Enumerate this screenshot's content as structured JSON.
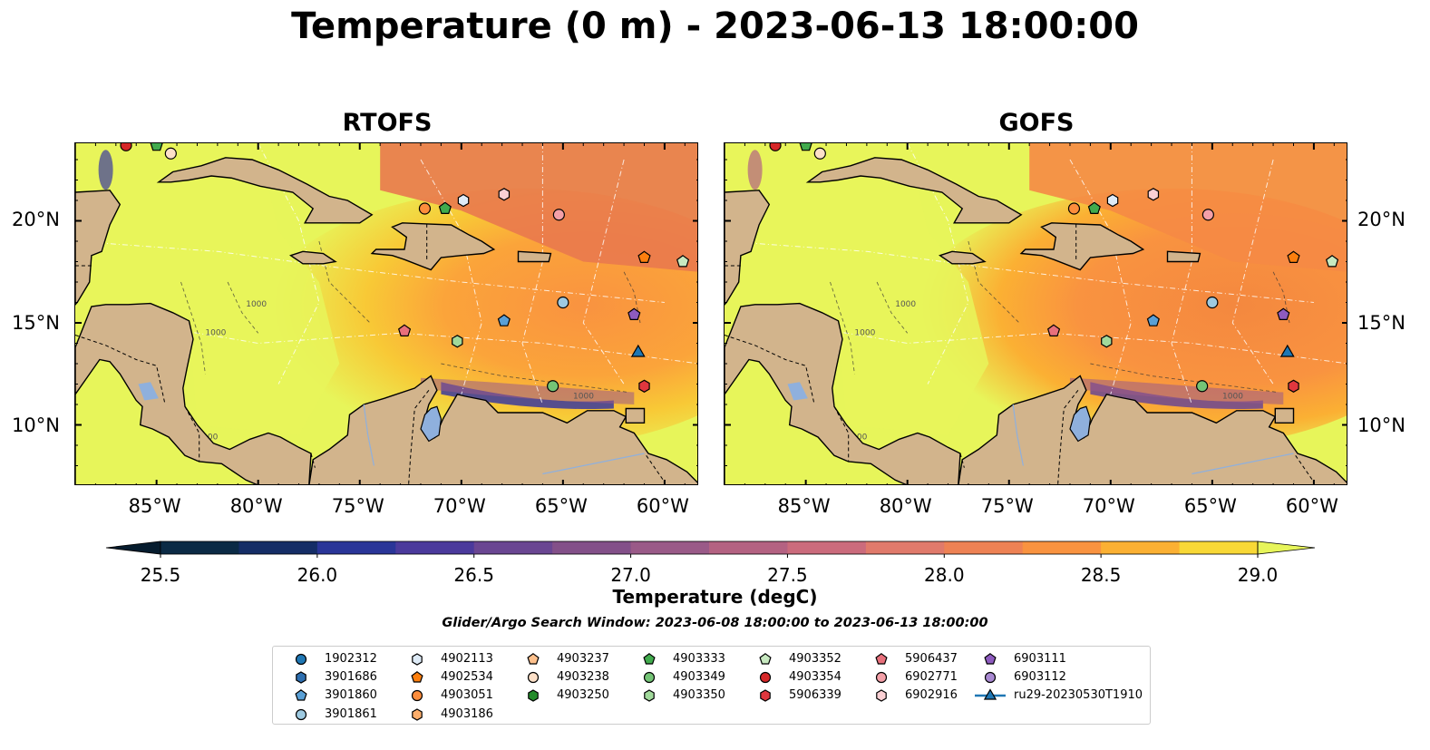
{
  "title": "Temperature (0 m) - 2023-06-13 18:00:00",
  "panels": [
    {
      "title": "RTOFS"
    },
    {
      "title": "GOFS"
    }
  ],
  "lon_ticks": [
    "85°W",
    "80°W",
    "75°W",
    "70°W",
    "65°W",
    "60°W"
  ],
  "lat_ticks": [
    "20°N",
    "15°N",
    "10°N"
  ],
  "contour_label": "1000",
  "colorbar": {
    "label": "Temperature (degC)",
    "ticks": [
      "25.5",
      "26.0",
      "26.5",
      "27.0",
      "27.5",
      "28.0",
      "28.5",
      "29.0"
    ],
    "colors": [
      "#0b2a45",
      "#152d66",
      "#2a3598",
      "#4b3a9c",
      "#6a4692",
      "#835089",
      "#9a5a88",
      "#b46282",
      "#cb6b7c",
      "#e07a6b",
      "#ee8254",
      "#f99340",
      "#fbb033",
      "#f8d836"
    ],
    "extend_min_color": "#061c2e",
    "extend_max_color": "#e7f55a"
  },
  "search_window": "Glider/Argo Search Window: 2023-06-08 18:00:00 to 2023-06-13 18:00:00",
  "legend": [
    {
      "label": "1902312",
      "marker": "circle",
      "color": "#1f77b4"
    },
    {
      "label": "3901686",
      "marker": "hexagon",
      "color": "#2e6fb0"
    },
    {
      "label": "3901860",
      "marker": "pentagon",
      "color": "#5aa0d6"
    },
    {
      "label": "3901861",
      "marker": "circle",
      "color": "#9ecae1"
    },
    {
      "label": "4902113",
      "marker": "hexagon",
      "color": "#deebf7"
    },
    {
      "label": "4902534",
      "marker": "pentagon",
      "color": "#fd7f0e"
    },
    {
      "label": "4903051",
      "marker": "circle",
      "color": "#fd8d3c"
    },
    {
      "label": "4903186",
      "marker": "hexagon",
      "color": "#fdae6b"
    },
    {
      "label": "4903237",
      "marker": "pentagon",
      "color": "#fdc08c"
    },
    {
      "label": "4903238",
      "marker": "circle",
      "color": "#fde0c8"
    },
    {
      "label": "4903250",
      "marker": "hexagon",
      "color": "#238b2a"
    },
    {
      "label": "4903333",
      "marker": "pentagon",
      "color": "#41ab4d"
    },
    {
      "label": "4903349",
      "marker": "circle",
      "color": "#74c476"
    },
    {
      "label": "4903350",
      "marker": "hexagon",
      "color": "#a1d99b"
    },
    {
      "label": "4903352",
      "marker": "pentagon",
      "color": "#c7e9c0"
    },
    {
      "label": "4903354",
      "marker": "circle",
      "color": "#d62728"
    },
    {
      "label": "5906339",
      "marker": "hexagon",
      "color": "#e0373e"
    },
    {
      "label": "5906437",
      "marker": "pentagon",
      "color": "#e8707c"
    },
    {
      "label": "6902771",
      "marker": "circle",
      "color": "#f4a0a8"
    },
    {
      "label": "6902916",
      "marker": "hexagon",
      "color": "#fbd0d4"
    },
    {
      "label": "6903111",
      "marker": "pentagon",
      "color": "#8e5bbf"
    },
    {
      "label": "6903112",
      "marker": "circle",
      "color": "#a989d2"
    },
    {
      "label": "ru29-20230530T1910",
      "marker": "triangle-line",
      "color": "#1f77b4"
    }
  ],
  "colors": {
    "land": "#d2b48c",
    "lake": "#8fb0dd",
    "ocean_warm": "#e7f55a"
  }
}
